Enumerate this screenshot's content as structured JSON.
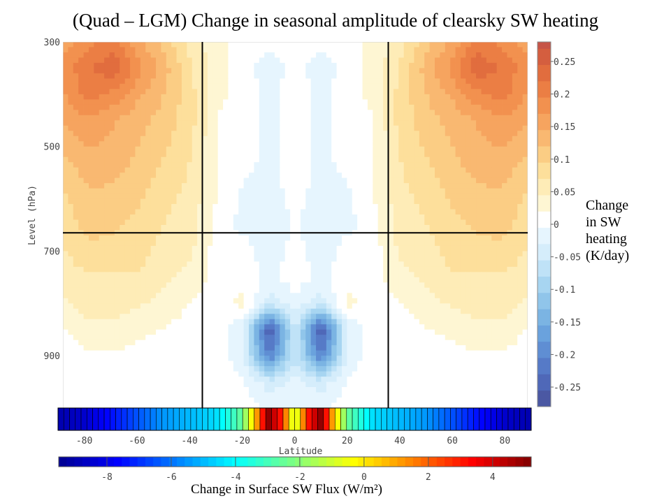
{
  "title": "(Quad – LGM) Change in seasonal amplitude of clearsky SW heating",
  "colorbar_caption": [
    "Change",
    "in SW",
    "heating",
    "(K/day)"
  ],
  "flux_caption": "Change in Surface SW Flux (W/m²)",
  "chart_data": [
    {
      "type": "heatmap",
      "title": "(Quad – LGM) Change in seasonal amplitude of clearsky SW heating",
      "xlabel": "Latitude",
      "ylabel": "Level (hPa)",
      "xlim": [
        -90,
        90
      ],
      "ylim": [
        1000,
        300
      ],
      "x_ticks": [
        -80,
        -60,
        -40,
        -20,
        0,
        20,
        40,
        60,
        80
      ],
      "y_ticks": [
        300,
        500,
        700,
        900
      ],
      "reference_lines": {
        "latitudes": [
          -36,
          36
        ],
        "level_hPa": 665
      },
      "x": [
        -90,
        -80,
        -70,
        -60,
        -50,
        -40,
        -30,
        -20,
        -10,
        0,
        10,
        20,
        30,
        40,
        50,
        60,
        70,
        80,
        90
      ],
      "y": [
        300,
        350,
        400,
        450,
        500,
        550,
        600,
        650,
        700,
        750,
        800,
        850,
        900,
        950,
        1000
      ],
      "z": [
        [
          0.15,
          0.18,
          0.2,
          0.14,
          0.1,
          0.05,
          0.02,
          0.0,
          0.0,
          0.0,
          0.0,
          0.0,
          0.02,
          0.05,
          0.1,
          0.14,
          0.2,
          0.18,
          0.15
        ],
        [
          0.17,
          0.21,
          0.23,
          0.17,
          0.12,
          0.06,
          0.02,
          0.0,
          -0.03,
          0.0,
          -0.03,
          0.0,
          0.02,
          0.06,
          0.12,
          0.17,
          0.23,
          0.21,
          0.17
        ],
        [
          0.16,
          0.2,
          0.18,
          0.14,
          0.11,
          0.07,
          0.02,
          0.0,
          -0.02,
          0.0,
          -0.02,
          0.0,
          0.02,
          0.07,
          0.11,
          0.14,
          0.18,
          0.2,
          0.16
        ],
        [
          0.14,
          0.16,
          0.14,
          0.12,
          0.1,
          0.07,
          0.01,
          0.0,
          -0.02,
          0.0,
          -0.02,
          0.0,
          0.01,
          0.07,
          0.1,
          0.12,
          0.14,
          0.16,
          0.14
        ],
        [
          0.12,
          0.14,
          0.13,
          0.11,
          0.09,
          0.06,
          0.01,
          0.0,
          -0.02,
          0.0,
          -0.02,
          0.0,
          0.01,
          0.06,
          0.09,
          0.11,
          0.13,
          0.14,
          0.12
        ],
        [
          0.1,
          0.12,
          0.12,
          0.1,
          0.08,
          0.06,
          0.01,
          -0.01,
          -0.02,
          0.0,
          -0.02,
          -0.01,
          0.01,
          0.06,
          0.08,
          0.1,
          0.12,
          0.12,
          0.1
        ],
        [
          0.08,
          0.11,
          0.1,
          0.09,
          0.07,
          0.05,
          0.01,
          -0.02,
          -0.03,
          0.0,
          -0.03,
          -0.02,
          0.01,
          0.05,
          0.07,
          0.09,
          0.1,
          0.11,
          0.08
        ],
        [
          0.07,
          0.1,
          0.09,
          0.08,
          0.06,
          0.05,
          0.0,
          -0.02,
          -0.04,
          -0.01,
          -0.04,
          -0.02,
          0.0,
          0.05,
          0.06,
          0.08,
          0.09,
          0.1,
          0.07
        ],
        [
          0.06,
          0.08,
          0.08,
          0.07,
          0.05,
          0.04,
          0.0,
          0.0,
          -0.03,
          0.0,
          -0.03,
          0.0,
          0.0,
          0.04,
          0.05,
          0.07,
          0.08,
          0.08,
          0.06
        ],
        [
          0.05,
          0.06,
          0.06,
          0.06,
          0.04,
          0.03,
          0.0,
          0.0,
          -0.02,
          0.0,
          -0.02,
          0.0,
          0.0,
          0.03,
          0.04,
          0.06,
          0.06,
          0.06,
          0.05
        ],
        [
          0.03,
          0.05,
          0.05,
          0.04,
          0.03,
          0.01,
          0.0,
          0.02,
          -0.05,
          -0.02,
          -0.05,
          0.02,
          0.0,
          0.01,
          0.03,
          0.04,
          0.05,
          0.05,
          0.03
        ],
        [
          0.01,
          0.03,
          0.03,
          0.02,
          0.01,
          0.0,
          0.0,
          -0.04,
          -0.27,
          -0.05,
          -0.27,
          -0.04,
          0.0,
          0.0,
          0.01,
          0.02,
          0.03,
          0.03,
          0.01
        ],
        [
          0.0,
          0.01,
          0.01,
          0.0,
          0.0,
          0.0,
          0.0,
          -0.03,
          -0.22,
          -0.06,
          -0.22,
          -0.03,
          0.0,
          0.0,
          0.0,
          0.0,
          0.01,
          0.01,
          0.0
        ],
        [
          0.0,
          0.0,
          0.0,
          0.0,
          0.0,
          0.0,
          0.0,
          -0.01,
          -0.05,
          -0.03,
          -0.05,
          -0.01,
          0.0,
          0.0,
          0.0,
          0.0,
          0.0,
          0.0,
          0.0
        ],
        [
          0.0,
          0.0,
          0.0,
          0.0,
          0.0,
          0.0,
          0.0,
          0.0,
          -0.02,
          -0.02,
          -0.02,
          0.0,
          0.0,
          0.0,
          0.0,
          0.0,
          0.0,
          0.0,
          0.0
        ]
      ],
      "colorbar": {
        "label": "Change in SW heating (K/day)",
        "range": [
          -0.28,
          0.28
        ],
        "step": 0.025,
        "ticks": [
          0.25,
          0.2,
          0.15,
          0.1,
          0.05,
          0,
          -0.05,
          -0.1,
          -0.15,
          -0.2,
          -0.25
        ],
        "tick_labels": [
          "0.25",
          "0.2",
          "0.15",
          "0.1",
          "0.05",
          "0",
          "-0.05",
          "-0.1",
          "-0.15",
          "-0.2",
          "-0.25"
        ]
      }
    },
    {
      "type": "heatmap",
      "title": "Change in Surface SW Flux (W/m²)",
      "xlabel": "Latitude",
      "xlim": [
        -90,
        90
      ],
      "x_ticks": [
        -80,
        -60,
        -40,
        -20,
        0,
        20,
        40,
        60,
        80
      ],
      "x": [
        -90,
        -80,
        -70,
        -60,
        -50,
        -40,
        -30,
        -20,
        -15,
        -10,
        -5,
        0,
        5,
        10,
        15,
        20,
        30,
        40,
        50,
        60,
        70,
        80,
        90
      ],
      "values": [
        -9.0,
        -8.5,
        -7.5,
        -6.5,
        -5.5,
        -5.0,
        -4.5,
        -2.5,
        0.5,
        5.0,
        3.0,
        -1.5,
        3.0,
        5.0,
        0.5,
        -2.5,
        -4.5,
        -5.0,
        -5.5,
        -6.5,
        -7.5,
        -8.5,
        -9.0
      ],
      "colorbar": {
        "range": [
          -9.5,
          5.2
        ],
        "ticks": [
          -8,
          -6,
          -4,
          -2,
          0,
          2,
          4
        ],
        "tick_labels": [
          "-8",
          "-6",
          "-4",
          "-2",
          "0",
          "2",
          "4"
        ]
      }
    }
  ],
  "colors": {
    "positive": [
      "#fffdf0",
      "#fef3c8",
      "#fde3a0",
      "#fbc97f",
      "#f8ac66",
      "#f2914f",
      "#e8763f",
      "#d7603d",
      "#c35249"
    ],
    "negative": [
      "#f4fbff",
      "#e1f3fd",
      "#c4e5f8",
      "#a2d2f0",
      "#82bbe6",
      "#6aa2dd",
      "#5a86cf",
      "#506bbc",
      "#4a559f"
    ],
    "jet": [
      "#00008f",
      "#0000ff",
      "#0080ff",
      "#00ffff",
      "#80ff80",
      "#ffff00",
      "#ff8000",
      "#ff0000",
      "#800000"
    ]
  }
}
